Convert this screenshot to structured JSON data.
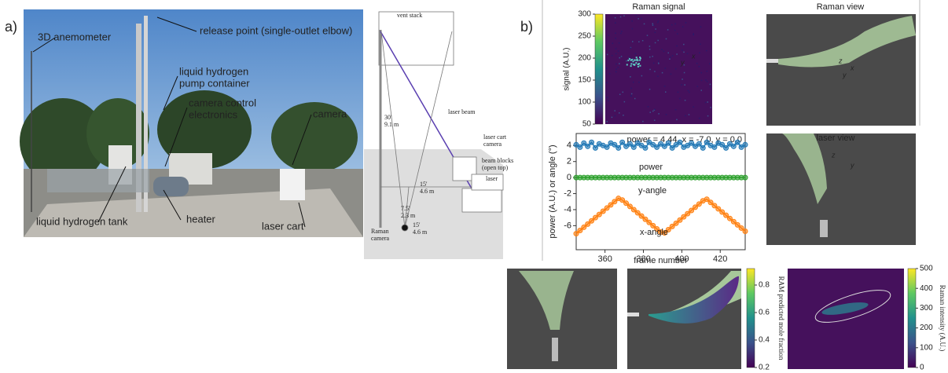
{
  "panel_a": {
    "label": "a)",
    "photo_labels": [
      [
        "3D anemometer"
      ],
      [
        "release point (single-outlet elbow)"
      ],
      [
        "liquid hydrogen",
        "pump container"
      ],
      [
        "camera control",
        "electronics"
      ],
      [
        "camera"
      ],
      [
        "liquid hydrogen tank"
      ],
      [
        "heater"
      ],
      [
        "laser cart"
      ]
    ],
    "diagram_labels": [
      [
        "vent stack"
      ],
      [
        "laser beam"
      ],
      [
        "laser cart",
        "camera"
      ],
      [
        "beam blocks",
        "(open top)"
      ],
      [
        "laser"
      ],
      [
        "30'",
        "9.1 m"
      ],
      [
        "15'",
        "4.6 m"
      ],
      [
        "7.5'",
        "2.3 m"
      ],
      [
        "15'",
        "4.6 m"
      ],
      [
        "Raman",
        "camera"
      ]
    ]
  },
  "panel_b": {
    "label": "b)",
    "image_titles": [
      "Raman signal",
      "Raman view",
      "laser view"
    ],
    "axis_glyphs": [
      "x",
      "y",
      "z",
      "x",
      "y",
      "z",
      "y"
    ]
  },
  "chart_data": [
    {
      "type": "line",
      "title": "power = 4.44, x = -7.0, y = 0.0",
      "xlabel": "frame number",
      "ylabel": "power (A.U.) or angle (°)",
      "xlim": [
        345,
        433
      ],
      "ylim": [
        -9,
        5.5
      ],
      "xticks": [
        360,
        380,
        400,
        420
      ],
      "yticks": [
        -6,
        -4,
        -2,
        0,
        2,
        4
      ],
      "x": [
        345,
        347,
        349,
        351,
        353,
        355,
        357,
        359,
        361,
        363,
        365,
        367,
        369,
        371,
        373,
        375,
        377,
        379,
        381,
        383,
        385,
        387,
        389,
        391,
        393,
        395,
        397,
        399,
        401,
        403,
        405,
        407,
        409,
        411,
        413,
        415,
        417,
        419,
        421,
        423,
        425,
        427,
        429,
        431,
        433
      ],
      "series": [
        {
          "name": "power",
          "color": "#1f77b4",
          "values": [
            4.1,
            3.8,
            4.3,
            3.9,
            4.4,
            3.7,
            4.2,
            4.0,
            3.8,
            4.3,
            4.1,
            3.7,
            4.4,
            3.9,
            4.2,
            3.8,
            4.3,
            4.0,
            3.7,
            4.4,
            4.1,
            3.8,
            4.2,
            3.9,
            4.3,
            3.7,
            4.1,
            4.4,
            3.8,
            4.0,
            4.3,
            3.9,
            4.2,
            3.7,
            4.4,
            4.0,
            3.8,
            4.3,
            4.1,
            3.7,
            4.2,
            3.9,
            4.4,
            3.8,
            4.1
          ]
        },
        {
          "name": "y-angle",
          "color": "#2ca02c",
          "values": [
            0,
            0,
            0,
            0,
            0,
            0,
            0,
            0,
            0,
            0,
            0,
            0,
            0,
            0,
            0,
            0,
            0,
            0,
            0,
            0,
            0,
            0,
            0,
            0,
            0,
            0,
            0,
            0,
            0,
            0,
            0,
            0,
            0,
            0,
            0,
            0,
            0,
            0,
            0,
            0,
            0,
            0,
            0,
            0,
            0
          ]
        },
        {
          "name": "x-angle",
          "color": "#ff7f0e",
          "values": [
            -7.0,
            -6.6,
            -6.2,
            -5.8,
            -5.4,
            -5.0,
            -4.6,
            -4.2,
            -3.8,
            -3.4,
            -3.0,
            -2.6,
            -2.8,
            -3.2,
            -3.6,
            -4.0,
            -4.4,
            -4.8,
            -5.2,
            -5.6,
            -6.0,
            -6.4,
            -6.8,
            -6.9,
            -6.5,
            -6.1,
            -5.7,
            -5.3,
            -4.9,
            -4.5,
            -4.1,
            -3.7,
            -3.3,
            -2.9,
            -2.7,
            -3.1,
            -3.5,
            -3.9,
            -4.3,
            -4.7,
            -5.1,
            -5.5,
            -5.9,
            -6.3,
            -6.7
          ]
        }
      ]
    },
    {
      "type": "colorbar",
      "ylabel": "signal (A.U.)",
      "ylim": [
        50,
        300
      ],
      "yticks": [
        50,
        100,
        150,
        200,
        250,
        300
      ]
    },
    {
      "type": "colorbar",
      "ylabel": "RAM predicted mole fraction",
      "ylim": [
        0.2,
        0.92
      ],
      "yticks": [
        0.2,
        0.4,
        0.6,
        0.8
      ]
    },
    {
      "type": "colorbar",
      "ylabel": "Raman intensity (A.U.)",
      "ylim": [
        0,
        500
      ],
      "yticks": [
        0,
        100,
        200,
        300,
        400,
        500
      ]
    }
  ]
}
